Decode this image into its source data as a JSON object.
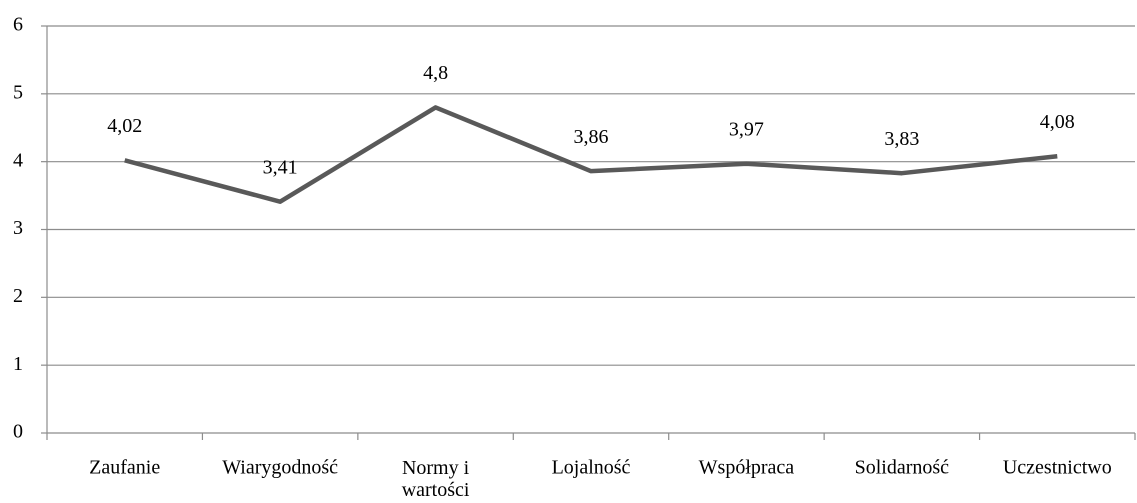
{
  "chart_data": {
    "type": "line",
    "categories": [
      "Zaufanie",
      "Wiarygodność",
      "Normy i wartości",
      "Lojalność",
      "Współpraca",
      "Solidarność",
      "Uczestnictwo"
    ],
    "values": [
      4.02,
      3.41,
      4.8,
      3.86,
      3.97,
      3.83,
      4.08
    ],
    "value_labels": [
      "4,02",
      "3,41",
      "4,8",
      "3,86",
      "3,97",
      "3,83",
      "4,08"
    ],
    "color": "#595959",
    "ylim": [
      0,
      6
    ],
    "yticks": [
      0,
      1,
      2,
      3,
      4,
      5,
      6
    ],
    "grid": true
  }
}
